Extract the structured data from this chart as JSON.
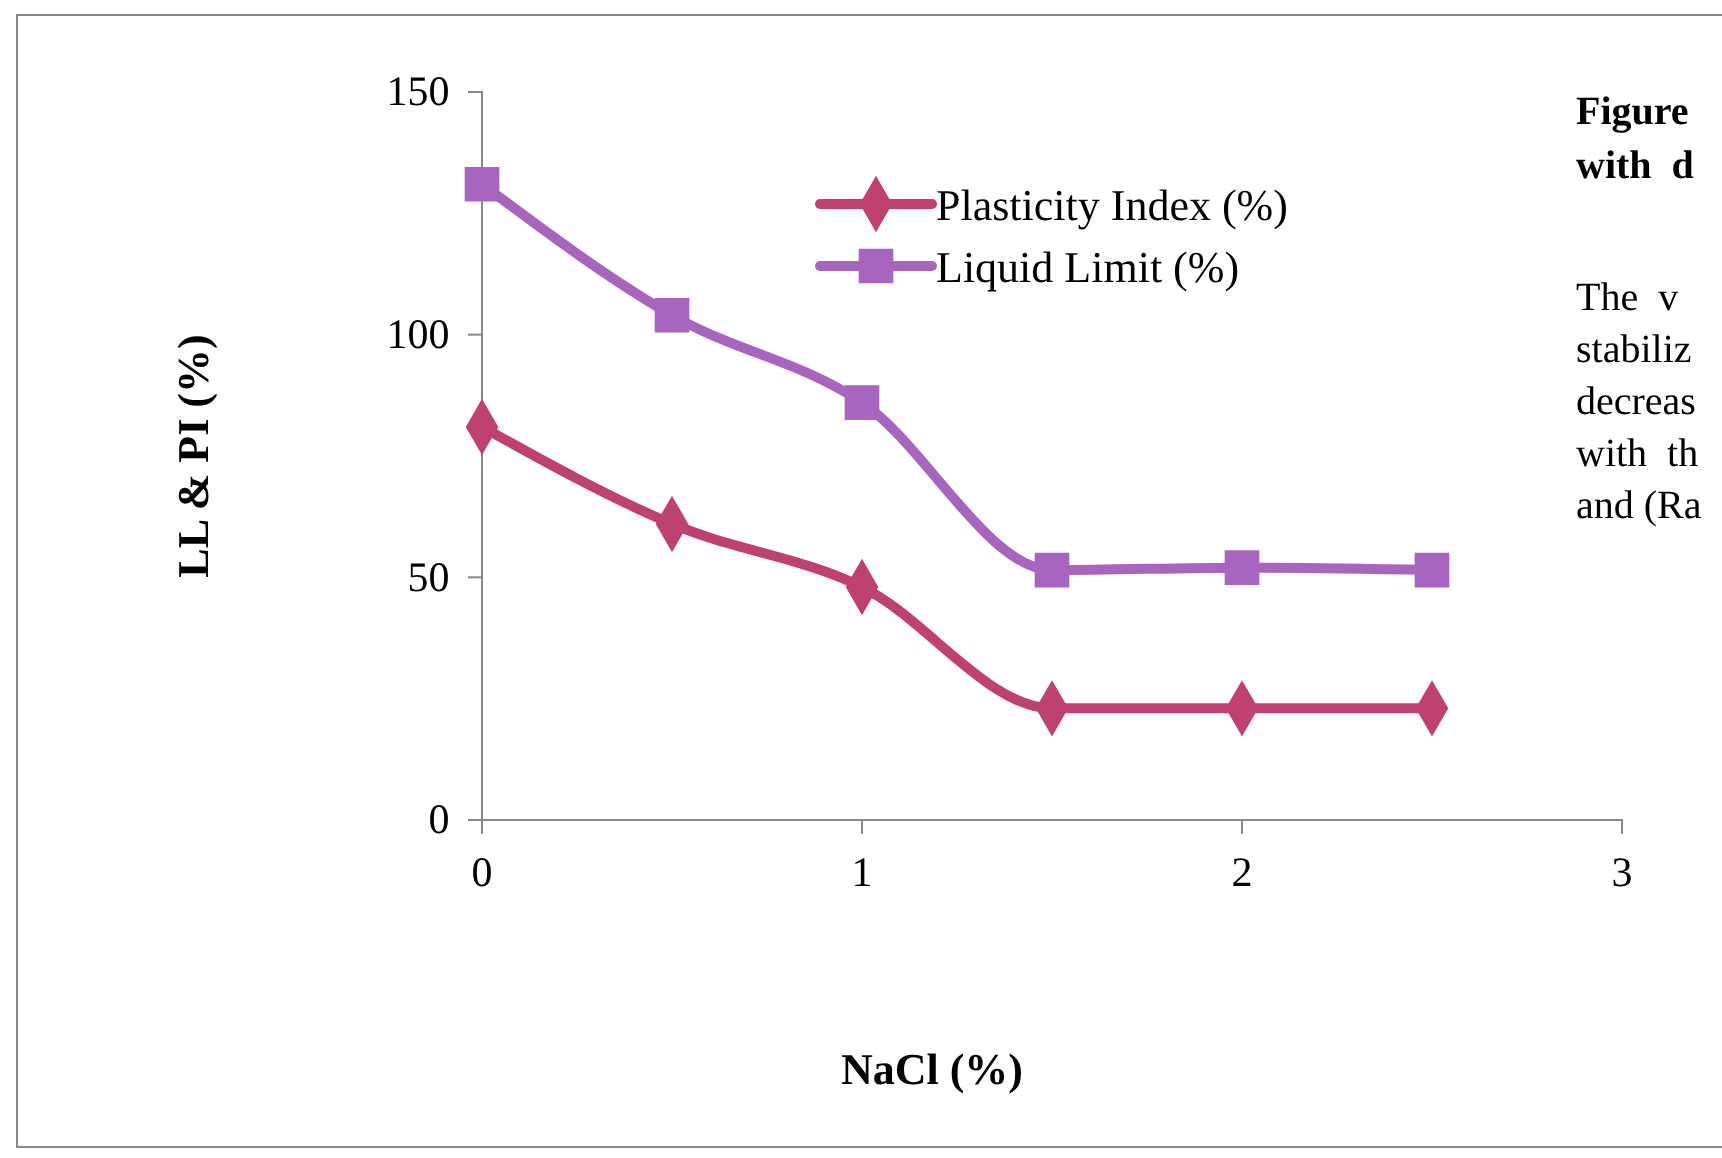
{
  "chart_data": {
    "type": "line",
    "xlabel": "NaCl (%)",
    "ylabel": "LL & PI  (%)",
    "x": [
      0,
      0.5,
      1,
      1.5,
      2,
      2.5
    ],
    "series": [
      {
        "name": "Plasticity Index (%)",
        "color": "#be4170",
        "marker": "diamond",
        "values": [
          81,
          61,
          48,
          23,
          23,
          23
        ]
      },
      {
        "name": "Liquid Limit (%)",
        "color": "#a865c0",
        "marker": "square",
        "values": [
          131,
          104,
          86,
          51.5,
          52,
          51.5
        ]
      }
    ],
    "xlim": [
      0,
      3
    ],
    "xticks": [
      0,
      1,
      2,
      3
    ],
    "ylim": [
      0,
      150
    ],
    "yticks": [
      0,
      50,
      100,
      150
    ],
    "grid": false,
    "legend": "top right",
    "line_style": "solid",
    "annotations": [
      "Figure",
      "with  d",
      "The  v",
      "stabiliz",
      "decreas",
      "with  th",
      "and (Ra"
    ]
  }
}
